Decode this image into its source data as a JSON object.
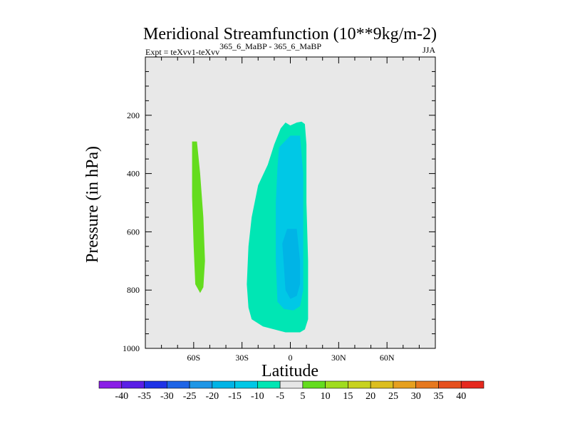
{
  "chart_data": {
    "type": "contour",
    "title": "Meridional Streamfunction (10**9kg/m-2)",
    "subtitle_left_prefix": "Expt = teXvv1-teXvv",
    "subtitle_left_superscript": "365_6_MaBP - 365_6_MaBP",
    "subtitle_right": "JJA",
    "xlabel": "Latitude",
    "ylabel": "Pressure (in hPa)",
    "xlim": [
      -90,
      90
    ],
    "ylim": [
      1000,
      0
    ],
    "x_major_ticks": [
      -60,
      -30,
      0,
      30,
      60
    ],
    "x_tick_labels": [
      "60S",
      "30S",
      "0",
      "30N",
      "60N"
    ],
    "y_major_ticks": [
      200,
      400,
      600,
      800,
      1000
    ],
    "y_tick_labels": [
      "200",
      "400",
      "600",
      "800",
      "1000"
    ],
    "background_color": "#e8e8e8",
    "regions": [
      {
        "name": "nh-cell-positive-5-10",
        "level": 7.5,
        "color": "#64dc1e",
        "points": [
          [
            -61,
            290
          ],
          [
            -58,
            290
          ],
          [
            -56,
            400
          ],
          [
            -54,
            550
          ],
          [
            -53,
            700
          ],
          [
            -54,
            790
          ],
          [
            -56,
            810
          ],
          [
            -59,
            780
          ],
          [
            -60,
            650
          ],
          [
            -61,
            480
          ],
          [
            -61,
            350
          ]
        ]
      },
      {
        "name": "eq-cell-negative-5-10",
        "level": -7.5,
        "color": "#00e6b4",
        "points": [
          [
            -3,
            225
          ],
          [
            0,
            235
          ],
          [
            4,
            225
          ],
          [
            7,
            222
          ],
          [
            9,
            230
          ],
          [
            10,
            300
          ],
          [
            10,
            500
          ],
          [
            11,
            700
          ],
          [
            11,
            900
          ],
          [
            9,
            935
          ],
          [
            6,
            945
          ],
          [
            -3,
            945
          ],
          [
            -10,
            935
          ],
          [
            -17,
            925
          ],
          [
            -24,
            900
          ],
          [
            -26,
            860
          ],
          [
            -27,
            780
          ],
          [
            -26,
            650
          ],
          [
            -24,
            550
          ],
          [
            -20,
            440
          ],
          [
            -14,
            370
          ],
          [
            -10,
            300
          ],
          [
            -6,
            245
          ]
        ]
      },
      {
        "name": "eq-cell-negative-10-15",
        "level": -12.5,
        "color": "#00c8e6",
        "points": [
          [
            -7,
            310
          ],
          [
            0,
            270
          ],
          [
            6,
            270
          ],
          [
            8,
            400
          ],
          [
            8,
            600
          ],
          [
            8,
            800
          ],
          [
            6,
            855
          ],
          [
            2,
            870
          ],
          [
            -4,
            865
          ],
          [
            -8,
            840
          ],
          [
            -9,
            700
          ],
          [
            -9,
            500
          ],
          [
            -8,
            380
          ]
        ]
      },
      {
        "name": "eq-cell-negative-15-20",
        "level": -17.5,
        "color": "#00b4e6",
        "points": [
          [
            -5,
            640
          ],
          [
            -2,
            590
          ],
          [
            4,
            590
          ],
          [
            6,
            700
          ],
          [
            6,
            780
          ],
          [
            4,
            820
          ],
          [
            0,
            830
          ],
          [
            -3,
            800
          ],
          [
            -4,
            720
          ]
        ]
      }
    ],
    "colorbar": {
      "labels": [
        "-40",
        "-35",
        "-30",
        "-25",
        "-20",
        "-15",
        "-10",
        "-5",
        "5",
        "10",
        "15",
        "20",
        "25",
        "30",
        "35",
        "40"
      ],
      "colors": [
        "#8a1ee6",
        "#5a1ee6",
        "#1e32e6",
        "#1e64e6",
        "#1e96e6",
        "#00b4e6",
        "#00c8e6",
        "#00e6b4",
        "#e6e6e6",
        "#64dc1e",
        "#a0dc1e",
        "#c8d21e",
        "#dcbe1e",
        "#e6a01e",
        "#e6781e",
        "#e6501e",
        "#e6281e"
      ]
    }
  }
}
